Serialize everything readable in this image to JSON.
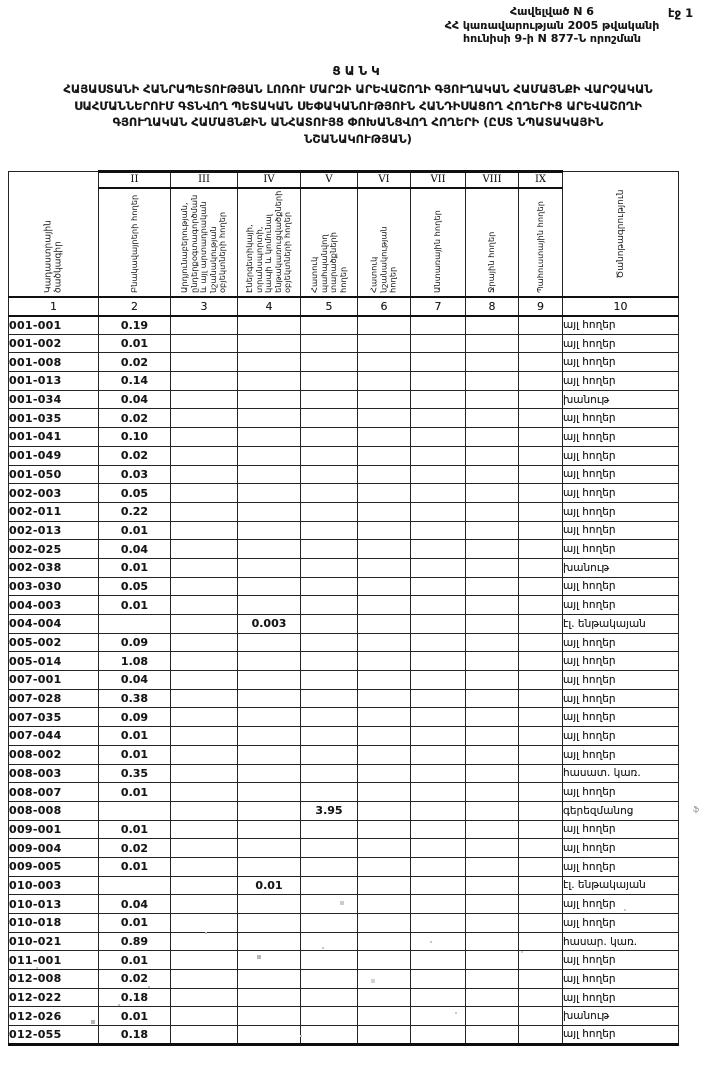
{
  "page_label": "էջ 1",
  "appendix": {
    "lines": [
      "Հավելված N 6",
      "ՀՀ կառավարության 2005 թվականի",
      "հունիսի 9-ի N 877-Ն որոշման"
    ]
  },
  "title": {
    "heading": "ՑԱՆԿ",
    "lines": [
      "ՀԱՅԱՍՏԱՆԻ ՀԱՆՐԱՊԵՏՈՒԹՅԱՆ ԼՈՌՈՒ ՄԱՐԶԻ ԱՐԵՎԱՇՈՂԻ ԳՅՈՒՂԱԿԱՆ ՀԱՄԱՅՆՔԻ ՎԱՐՉԱԿԱՆ",
      "ՍԱՀՄԱՆՆԵՐՈՒՄ ԳՏՆՎՈՂ ՊԵՏԱԿԱՆ ՍԵՓԱԿԱՆՈՒԹՅՈՒՆ ՀԱՆԴԻՍԱՑՈՂ ՀՈՂԵՐԻՑ ԱՐԵՎԱՇՈՂԻ",
      "ԳՅՈՒՂԱԿԱՆ ՀԱՄԱՅՆՔԻՆ ԱՆՀԱՏՈՒՅՑ ՓՈԽԱՆՑՎՈՂ ՀՈՂԵՐԻ (ԸՍՏ ՆՊԱՏԱԿԱՅԻՆ",
      "ՆՇԱՆԱԿՈՒԹՅԱՆ)"
    ]
  },
  "table": {
    "roman": [
      "II",
      "III",
      "IV",
      "V",
      "VI",
      "VII",
      "VIII",
      "IX"
    ],
    "headers": [
      "Կադաստրային ծածկագիր",
      "Բնակավայրերի հողեր",
      "Արդյունաբերության, ընդերքօգտագործման և այլ արտադրական նշանակության օբյեկտների հողեր",
      "Էներգետիկայի, տրանսպորտի, կապի և կոմունալ ենթակառուցվածքների օբյեկտների հողեր",
      "Հատուկ պահպանվող տարածքների հողեր",
      "Հատուկ նշանակության հողեր",
      "Անտառային հողեր",
      "Ջրային հողեր",
      "Պահուստային հողեր",
      "Ծանոթագրություն"
    ],
    "numbers": [
      "1",
      "2",
      "3",
      "4",
      "5",
      "6",
      "7",
      "8",
      "9",
      "10"
    ],
    "rows": [
      {
        "code": "001-001",
        "c2": "0.19",
        "note": "այլ հողեր"
      },
      {
        "code": "001-002",
        "c2": "0.01",
        "note": "այլ հողեր"
      },
      {
        "code": "001-008",
        "c2": "0.02",
        "note": "այլ հողեր"
      },
      {
        "code": "001-013",
        "c2": "0.14",
        "note": "այլ հողեր"
      },
      {
        "code": "001-034",
        "c2": "0.04",
        "note": "խանութ"
      },
      {
        "code": "001-035",
        "c2": "0.02",
        "note": "այլ հողեր"
      },
      {
        "code": "001-041",
        "c2": "0.10",
        "note": "այլ հողեր"
      },
      {
        "code": "001-049",
        "c2": "0.02",
        "note": "այլ հողեր"
      },
      {
        "code": "001-050",
        "c2": "0.03",
        "note": "այլ հողեր"
      },
      {
        "code": "002-003",
        "c2": "0.05",
        "note": "այլ հողեր"
      },
      {
        "code": "002-011",
        "c2": "0.22",
        "note": "այլ հողեր"
      },
      {
        "code": "002-013",
        "c2": "0.01",
        "note": "այլ հողեր"
      },
      {
        "code": "002-025",
        "c2": "0.04",
        "note": "այլ հողեր"
      },
      {
        "code": "002-038",
        "c2": "0.01",
        "note": "խանութ"
      },
      {
        "code": "003-030",
        "c2": "0.05",
        "note": "այլ հողեր"
      },
      {
        "code": "004-003",
        "c2": "0.01",
        "note": "այլ հողեր"
      },
      {
        "code": "004-004",
        "c4": "0.003",
        "note": "էլ. ենթակայան"
      },
      {
        "code": "005-002",
        "c2": "0.09",
        "note": "այլ հողեր"
      },
      {
        "code": "005-014",
        "c2": "1.08",
        "note": "այլ հողեր"
      },
      {
        "code": "007-001",
        "c2": "0.04",
        "note": "այլ հողեր"
      },
      {
        "code": "007-028",
        "c2": "0.38",
        "note": "այլ հողեր"
      },
      {
        "code": "007-035",
        "c2": "0.09",
        "note": "այլ հողեր"
      },
      {
        "code": "007-044",
        "c2": "0.01",
        "note": "այլ հողեր"
      },
      {
        "code": "008-002",
        "c2": "0.01",
        "note": "այլ հողեր"
      },
      {
        "code": "008-003",
        "c2": "0.35",
        "note": "հասատ. կառ."
      },
      {
        "code": "008-007",
        "c2": "0.01",
        "note": "այլ հողեր"
      },
      {
        "code": "008-008",
        "c5": "3.95",
        "note": "գերեզմանոց"
      },
      {
        "code": "009-001",
        "c2": "0.01",
        "note": "այլ հողեր"
      },
      {
        "code": "009-004",
        "c2": "0.02",
        "note": "այլ հողեր"
      },
      {
        "code": "009-005",
        "c2": "0.01",
        "note": "այլ հողեր"
      },
      {
        "code": "010-003",
        "c4": "0.01",
        "note": "էլ. ենթակայան"
      },
      {
        "code": "010-013",
        "c2": "0.04",
        "note": "այլ հողեր"
      },
      {
        "code": "010-018",
        "c2": "0.01",
        "note": "այլ հողեր"
      },
      {
        "code": "010-021",
        "c2": "0.89",
        "note": "հասար. կառ."
      },
      {
        "code": "011-001",
        "c2": "0.01",
        "note": "այլ հողեր"
      },
      {
        "code": "012-008",
        "c2": "0.02",
        "note": "այլ հողեր"
      },
      {
        "code": "012-022",
        "c2": "0.18",
        "note": "այլ հողեր"
      },
      {
        "code": "012-026",
        "c2": "0.01",
        "note": "խանութ"
      },
      {
        "code": "012-055",
        "c2": "0.18",
        "note": "այլ հողեր"
      }
    ]
  },
  "artifacts": {
    "margin_glyph": "ֆ"
  }
}
